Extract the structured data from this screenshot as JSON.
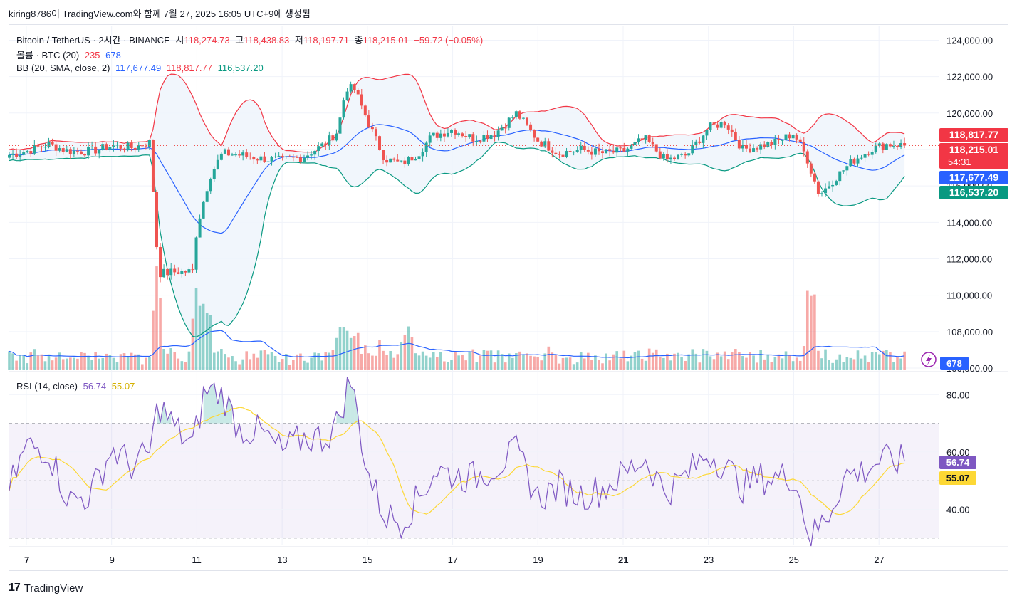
{
  "header": {
    "text": "kiring8786이 TradingView.com와 함께 7월 27, 2025 16:05 UTC+9에 생성됨"
  },
  "legend": {
    "symbol": "Bitcoin / TetherUS · 2시간 · BINANCE",
    "open_label": "시",
    "open": "118,274.73",
    "high_label": "고",
    "high": "118,438.83",
    "low_label": "저",
    "low": "118,197.71",
    "close_label": "종",
    "close": "118,215.01",
    "change": "−59.72 (−0.05%)",
    "volume_title": "볼륨 · BTC (20)",
    "volume_val": "235",
    "volume_ma": "678",
    "bb_title": "BB (20, SMA, close, 2)",
    "bb_basis": "117,677.49",
    "bb_upper": "118,817.77",
    "bb_lower": "116,537.20",
    "rsi_title": "RSI (14, close)",
    "rsi_val": "56.74",
    "rsi_ma": "55.07"
  },
  "price_tags": {
    "upper": "118,817.77",
    "last": "118,215.01",
    "countdown": "54:31",
    "basis": "117,677.49",
    "lower": "116,537.20",
    "volume": "678",
    "rsi": "56.74",
    "rsi_ma": "55.07"
  },
  "brand": {
    "name": "TradingView"
  },
  "colors": {
    "up": "#26a69a",
    "down": "#ef5350",
    "basis": "#2962ff",
    "upper": "#f23645",
    "lower": "#089981",
    "rsi": "#7e57c2",
    "rsi_ma": "#fdd835",
    "band_fill": "#eef4fb"
  },
  "chart_data": [
    {
      "type": "candlestick",
      "title": "Bitcoin / TetherUS · 2시간 · BINANCE",
      "y_ticks": [
        "124,000.00",
        "122,000.00",
        "120,000.00",
        "118,000.00",
        "116,000.00",
        "114,000.00",
        "112,000.00",
        "110,000.00",
        "108,000.00",
        "106,000.00"
      ],
      "ylim": [
        106000,
        124800
      ],
      "x_ticks": [
        "7",
        "9",
        "11",
        "13",
        "15",
        "17",
        "19",
        "21",
        "23",
        "25",
        "27"
      ],
      "close_keypoints": [
        {
          "day": 6.6,
          "close": 117700
        },
        {
          "day": 7.0,
          "close": 117900
        },
        {
          "day": 7.5,
          "close": 118300
        },
        {
          "day": 8.0,
          "close": 117900
        },
        {
          "day": 8.5,
          "close": 117900
        },
        {
          "day": 9.0,
          "close": 118200
        },
        {
          "day": 9.5,
          "close": 118100
        },
        {
          "day": 9.9,
          "close": 118400
        },
        {
          "day": 10.1,
          "close": 111200
        },
        {
          "day": 10.6,
          "close": 111300
        },
        {
          "day": 10.9,
          "close": 111300
        },
        {
          "day": 11.0,
          "close": 113700
        },
        {
          "day": 11.3,
          "close": 116500
        },
        {
          "day": 11.6,
          "close": 117800
        },
        {
          "day": 12.0,
          "close": 117700
        },
        {
          "day": 12.5,
          "close": 117500
        },
        {
          "day": 13.0,
          "close": 117400
        },
        {
          "day": 13.5,
          "close": 117600
        },
        {
          "day": 14.0,
          "close": 118300
        },
        {
          "day": 14.3,
          "close": 119000
        },
        {
          "day": 14.5,
          "close": 121400
        },
        {
          "day": 14.7,
          "close": 121300
        },
        {
          "day": 15.0,
          "close": 119600
        },
        {
          "day": 15.4,
          "close": 117500
        },
        {
          "day": 15.8,
          "close": 117200
        },
        {
          "day": 16.2,
          "close": 117800
        },
        {
          "day": 16.5,
          "close": 118700
        },
        {
          "day": 17.0,
          "close": 119100
        },
        {
          "day": 17.5,
          "close": 118600
        },
        {
          "day": 18.0,
          "close": 118900
        },
        {
          "day": 18.5,
          "close": 120000
        },
        {
          "day": 19.0,
          "close": 118500
        },
        {
          "day": 19.5,
          "close": 117800
        },
        {
          "day": 20.0,
          "close": 118000
        },
        {
          "day": 20.5,
          "close": 117800
        },
        {
          "day": 21.0,
          "close": 117900
        },
        {
          "day": 21.5,
          "close": 118600
        },
        {
          "day": 22.0,
          "close": 117400
        },
        {
          "day": 22.5,
          "close": 117700
        },
        {
          "day": 23.0,
          "close": 119200
        },
        {
          "day": 23.4,
          "close": 119500
        },
        {
          "day": 23.8,
          "close": 118000
        },
        {
          "day": 24.2,
          "close": 118200
        },
        {
          "day": 24.6,
          "close": 118400
        },
        {
          "day": 25.0,
          "close": 118900
        },
        {
          "day": 25.3,
          "close": 117600
        },
        {
          "day": 25.6,
          "close": 115500
        },
        {
          "day": 26.0,
          "close": 116500
        },
        {
          "day": 26.4,
          "close": 117400
        },
        {
          "day": 26.8,
          "close": 118000
        },
        {
          "day": 27.2,
          "close": 118300
        },
        {
          "day": 27.6,
          "close": 118215
        }
      ],
      "series": [
        {
          "name": "BB upper",
          "last": 118817.77
        },
        {
          "name": "BB basis",
          "last": 117677.49
        },
        {
          "name": "BB lower",
          "last": 116537.2
        }
      ]
    },
    {
      "type": "bar",
      "title": "볼륨 · BTC (20)",
      "series": [
        {
          "name": "Volume MA",
          "last": 678
        }
      ]
    },
    {
      "type": "line",
      "title": "RSI (14, close)",
      "y_ticks": [
        "80.00",
        "60.00",
        "40.00"
      ],
      "ylim": [
        27.5,
        87.5
      ],
      "bands": [
        30,
        50,
        70
      ],
      "rsi_keypoints": [
        {
          "day": 6.6,
          "v": 47
        },
        {
          "day": 7.0,
          "v": 62
        },
        {
          "day": 7.5,
          "v": 61
        },
        {
          "day": 8.0,
          "v": 43
        },
        {
          "day": 8.5,
          "v": 45
        },
        {
          "day": 9.0,
          "v": 61
        },
        {
          "day": 9.5,
          "v": 55
        },
        {
          "day": 9.9,
          "v": 60
        },
        {
          "day": 10.1,
          "v": 77
        },
        {
          "day": 10.5,
          "v": 68
        },
        {
          "day": 10.9,
          "v": 62
        },
        {
          "day": 11.2,
          "v": 82
        },
        {
          "day": 11.6,
          "v": 80
        },
        {
          "day": 12.0,
          "v": 68
        },
        {
          "day": 12.5,
          "v": 67
        },
        {
          "day": 13.0,
          "v": 60
        },
        {
          "day": 13.5,
          "v": 65
        },
        {
          "day": 14.0,
          "v": 65
        },
        {
          "day": 14.3,
          "v": 70
        },
        {
          "day": 14.6,
          "v": 86
        },
        {
          "day": 14.8,
          "v": 70
        },
        {
          "day": 15.0,
          "v": 53
        },
        {
          "day": 15.4,
          "v": 38
        },
        {
          "day": 15.8,
          "v": 36
        },
        {
          "day": 16.2,
          "v": 44
        },
        {
          "day": 16.6,
          "v": 54
        },
        {
          "day": 17.0,
          "v": 52
        },
        {
          "day": 17.5,
          "v": 51
        },
        {
          "day": 18.0,
          "v": 55
        },
        {
          "day": 18.5,
          "v": 60
        },
        {
          "day": 19.0,
          "v": 44
        },
        {
          "day": 19.5,
          "v": 48
        },
        {
          "day": 20.0,
          "v": 45
        },
        {
          "day": 20.5,
          "v": 47
        },
        {
          "day": 21.0,
          "v": 52
        },
        {
          "day": 21.5,
          "v": 58
        },
        {
          "day": 22.0,
          "v": 46
        },
        {
          "day": 22.5,
          "v": 52
        },
        {
          "day": 23.0,
          "v": 60
        },
        {
          "day": 23.4,
          "v": 55
        },
        {
          "day": 23.8,
          "v": 48
        },
        {
          "day": 24.2,
          "v": 51
        },
        {
          "day": 24.6,
          "v": 51
        },
        {
          "day": 25.0,
          "v": 52
        },
        {
          "day": 25.4,
          "v": 30
        },
        {
          "day": 25.8,
          "v": 38
        },
        {
          "day": 26.2,
          "v": 52
        },
        {
          "day": 26.6,
          "v": 53
        },
        {
          "day": 27.0,
          "v": 57
        },
        {
          "day": 27.6,
          "v": 56.74
        }
      ],
      "series": [
        {
          "name": "RSI",
          "last": 56.74
        },
        {
          "name": "RSI MA",
          "last": 55.07
        }
      ]
    }
  ]
}
